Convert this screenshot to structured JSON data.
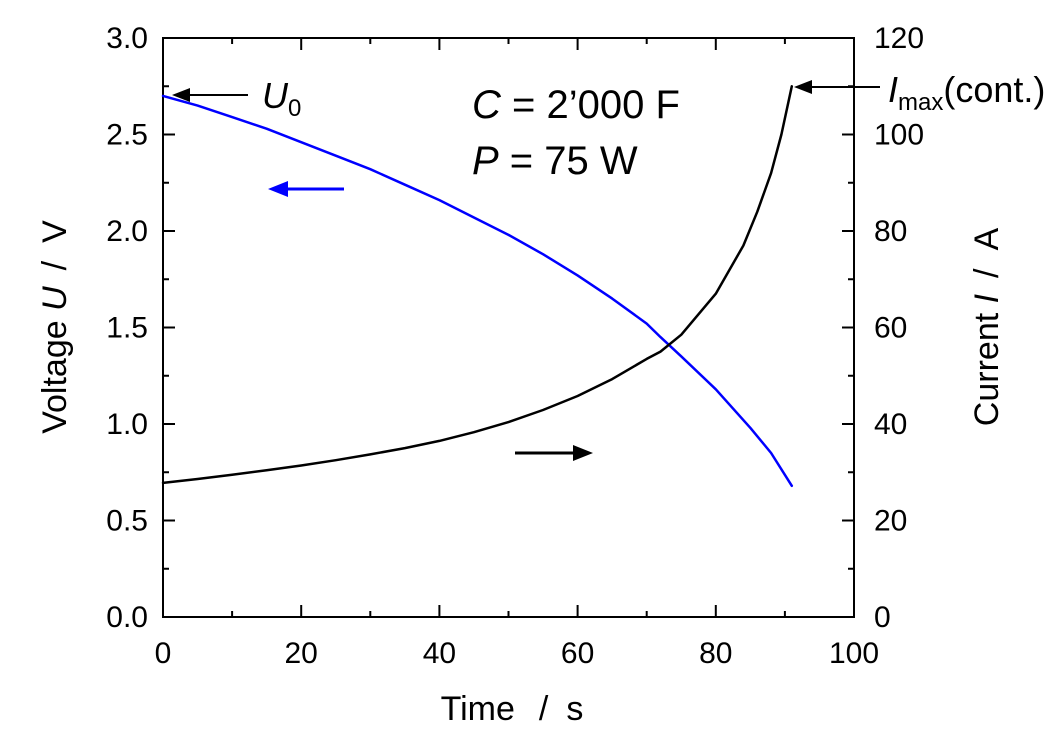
{
  "chart_data": {
    "type": "line",
    "x_axis": {
      "label_prefix": "Time",
      "label_unit": "s",
      "range": [
        0,
        100
      ],
      "ticks": [
        "0",
        "20",
        "40",
        "60",
        "80",
        "100"
      ],
      "tick_values": [
        0,
        20,
        40,
        60,
        80,
        100
      ]
    },
    "y_left": {
      "label_prefix": "Voltage ",
      "label_symbol": "U",
      "label_unit": "V",
      "range": [
        0,
        3
      ],
      "ticks": [
        "0.0",
        "0.5",
        "1.0",
        "1.5",
        "2.0",
        "2.5",
        "3.0"
      ],
      "tick_values": [
        0,
        0.5,
        1,
        1.5,
        2,
        2.5,
        3
      ]
    },
    "y_right": {
      "label_prefix": "Current ",
      "label_symbol": "I",
      "label_unit": "A",
      "range": [
        0,
        120
      ],
      "ticks": [
        "0",
        "20",
        "40",
        "60",
        "80",
        "100",
        "120"
      ],
      "tick_values": [
        0,
        20,
        40,
        60,
        80,
        100,
        120
      ]
    },
    "grid": false,
    "series": [
      {
        "axis": "left",
        "color": "#0000ff",
        "x": [
          0,
          5,
          10,
          15,
          20,
          25,
          30,
          35,
          40,
          45,
          50,
          55,
          60,
          65,
          70,
          72,
          75,
          80,
          85,
          88,
          91
        ],
        "y": [
          2.7,
          2.65,
          2.59,
          2.53,
          2.46,
          2.39,
          2.32,
          2.24,
          2.16,
          2.07,
          1.98,
          1.88,
          1.77,
          1.65,
          1.52,
          1.45,
          1.35,
          1.18,
          0.98,
          0.85,
          0.68
        ]
      },
      {
        "axis": "right",
        "color": "#000000",
        "x": [
          0,
          5,
          10,
          15,
          20,
          25,
          30,
          35,
          40,
          45,
          50,
          55,
          60,
          65,
          70,
          72,
          75,
          80,
          84,
          86,
          88,
          89.5,
          91
        ],
        "y": [
          27.8,
          28.6,
          29.5,
          30.4,
          31.4,
          32.5,
          33.7,
          35.0,
          36.5,
          38.3,
          40.4,
          42.9,
          45.8,
          49.3,
          53.5,
          55.0,
          58.5,
          67.0,
          77.0,
          84.0,
          92.0,
          100.0,
          110.0
        ]
      }
    ],
    "annotations": {
      "capacitance": {
        "symbol": "C",
        "text": " = 2’000 F"
      },
      "power": {
        "symbol": "P",
        "text": " = 75 W"
      },
      "u0": {
        "symbol": "U",
        "subscript": "0"
      },
      "imax": {
        "symbol": "I",
        "subscript": "max",
        "suffix": "(cont.)"
      }
    },
    "arrow_colors": {
      "voltage": "#0000ff",
      "current": "#000000"
    }
  }
}
